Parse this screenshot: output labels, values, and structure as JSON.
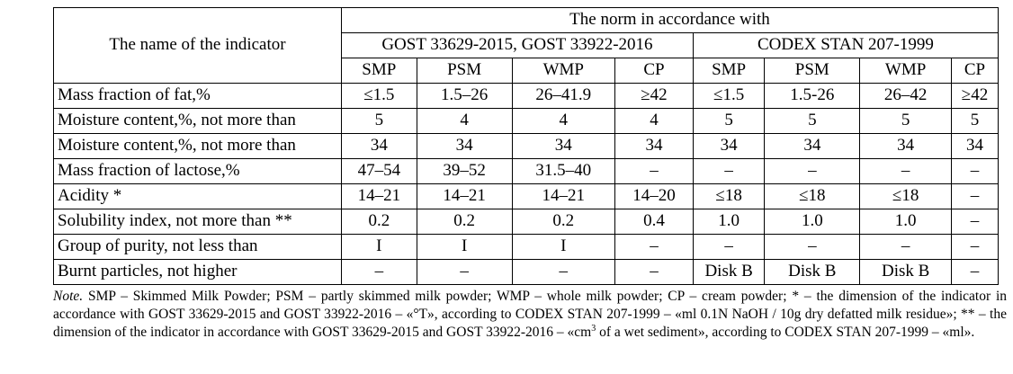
{
  "header": {
    "indicator": "The name of the indicator",
    "norm": "The norm in accordance with",
    "gost": "GOST 33629-2015, GOST 33922-2016",
    "codex": "CODEX STAN 207-1999",
    "columns": [
      "SMP",
      "PSM",
      "WMP",
      "CP",
      "SMP",
      "PSM",
      "WMP",
      "CP"
    ]
  },
  "rows": [
    {
      "name": "Mass fraction of fat,%",
      "values": [
        "≤1.5",
        "1.5–26",
        "26–41.9",
        "≥42",
        "≤1.5",
        "1.5-26",
        "26–42",
        "≥42"
      ]
    },
    {
      "name": "Moisture content,%, not more than",
      "values": [
        "5",
        "4",
        "4",
        "4",
        "5",
        "5",
        "5",
        "5"
      ]
    },
    {
      "name": "Moisture content,%, not more than",
      "values": [
        "34",
        "34",
        "34",
        "34",
        "34",
        "34",
        "34",
        "34"
      ]
    },
    {
      "name": "Mass fraction of lactose,%",
      "values": [
        "47–54",
        "39–52",
        "31.5–40",
        "–",
        "–",
        "–",
        "–",
        "–"
      ]
    },
    {
      "name": "Acidity *",
      "values": [
        "14–21",
        "14–21",
        "14–21",
        "14–20",
        "≤18",
        "≤18",
        "≤18",
        "–"
      ]
    },
    {
      "name": "Solubility index, not more than **",
      "values": [
        "0.2",
        "0.2",
        "0.2",
        "0.4",
        "1.0",
        "1.0",
        "1.0",
        "–"
      ]
    },
    {
      "name": "Group of purity, not less than",
      "values": [
        "I",
        "I",
        "I",
        "–",
        "–",
        "–",
        "–",
        "–"
      ]
    },
    {
      "name": "Burnt particles, not higher",
      "values": [
        "–",
        "–",
        "–",
        "–",
        "Disk B",
        "Disk B",
        "Disk B",
        "–"
      ]
    }
  ],
  "note": {
    "label": "Note.",
    "text_before_sup": " SMP – Skimmed Milk Powder; PSM  – partly skimmed milk powder; WMP – whole milk powder; CP – cream powder; * – the dimension of the indicator in accordance with GOST 33629-2015 and GOST 33922-2016 – «°T», according to CODEX STAN 207-1999 – «ml 0.1N NaOH / 10g dry defatted milk residue»; ** – the dimension of the indicator in accordance with GOST 33629-2015 and GOST 33922-2016 – «cm",
    "sup": "3",
    "text_after_sup": " of a wet sediment», according to CODEX STAN 207-1999 – «ml»."
  }
}
